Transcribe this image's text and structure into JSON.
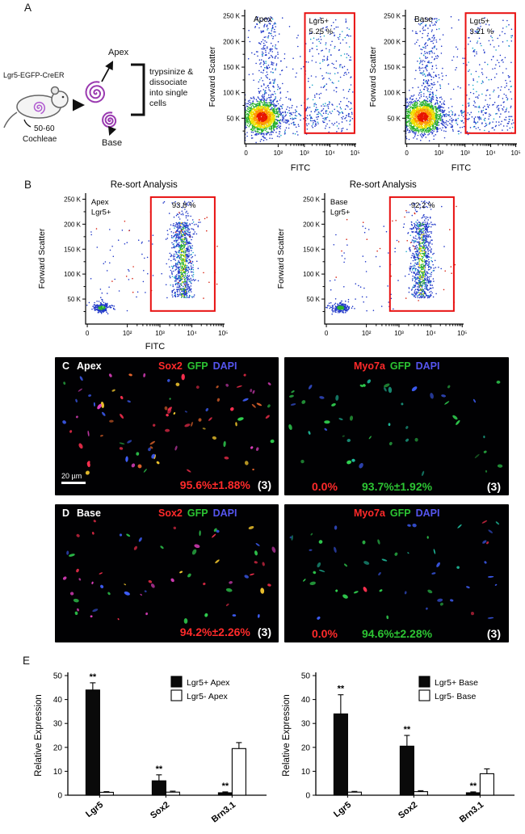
{
  "colors": {
    "gate": "#e81010",
    "density_core": "#e81400",
    "density_mid": "#f0e000",
    "density_low": "#2038c8",
    "sox2_red": "#ff2a2a",
    "gfp_green": "#2cc433",
    "dapi_blue": "#5555ee"
  },
  "flow_axes": {
    "ylabel": "Forward Scatter",
    "xlabel": "FITC",
    "yticks": [
      "250 K",
      "200 K",
      "150 K",
      "100 K",
      "50 K"
    ],
    "xticks": [
      "0",
      "10²",
      "10³",
      "10⁴",
      "10⁵"
    ]
  },
  "panelA": {
    "label": "A",
    "construct": "Lgr5-EGFP-CreER",
    "apex": "Apex",
    "base": "Base",
    "count_note": "50-60",
    "count_note2": "Cochleae",
    "process": [
      "trypsinize &",
      "dissociate",
      "into single",
      "cells"
    ],
    "plots": [
      {
        "inside_label": "Apex",
        "gate_line1": "Lgr5+",
        "gate_line2": "5.25 %"
      },
      {
        "inside_label": "Base",
        "gate_line1": "Lgr5+",
        "gate_line2": "3.21 %"
      }
    ]
  },
  "panelB": {
    "label": "B",
    "plots": [
      {
        "title": "Re-sort Analysis",
        "sample1": "Apex",
        "sample2": "Lgr5+",
        "gate_value": "93.8 %"
      },
      {
        "title": "Re-sort Analysis",
        "sample1": "Base",
        "sample2": "Lgr5+",
        "gate_value": "92.2 %"
      }
    ]
  },
  "panelC": {
    "label": "C",
    "region": "Apex",
    "scalebar": "20 µm",
    "left": {
      "stain1": "Sox2",
      "stain2": "GFP",
      "stain3": "DAPI",
      "stat1": "95.6%±1.88%",
      "stat_n": "(3)"
    },
    "right": {
      "stain1": "Myo7a",
      "stain2": "GFP",
      "stain3": "DAPI",
      "stat0": "0.0%",
      "stat1": "93.7%±1.92%",
      "stat_n": "(3)"
    }
  },
  "panelD": {
    "label": "D",
    "region": "Base",
    "left": {
      "stain1": "Sox2",
      "stain2": "GFP",
      "stain3": "DAPI",
      "stat1": "94.2%±2.26%",
      "stat_n": "(3)"
    },
    "right": {
      "stain1": "Myo7a",
      "stain2": "GFP",
      "stain3": "DAPI",
      "stat0": "0.0%",
      "stat1": "94.6%±2.28%",
      "stat_n": "(3)"
    }
  },
  "panelE": {
    "label": "E"
  },
  "chart_data": [
    {
      "type": "bar",
      "ylabel": "Relative Expression",
      "ylim": [
        0,
        50
      ],
      "yticks": [
        0,
        10,
        20,
        30,
        40,
        50
      ],
      "categories": [
        "Lgr5",
        "Sox2",
        "Brn3.1"
      ],
      "legend_position": "top-right",
      "series": [
        {
          "name": "Lgr5+ Apex",
          "fill": "#0a0a0a",
          "values": [
            44,
            6,
            1
          ],
          "errors": [
            3,
            2.5,
            0.4
          ],
          "sig": [
            "**",
            "**",
            "**"
          ]
        },
        {
          "name": "Lgr5- Apex",
          "fill": "#ffffff",
          "values": [
            1.2,
            1.3,
            19.5
          ],
          "errors": [
            0.3,
            0.4,
            2.5
          ],
          "sig": [
            "",
            "",
            ""
          ]
        }
      ]
    },
    {
      "type": "bar",
      "ylabel": "Relative Expression",
      "ylim": [
        0,
        50
      ],
      "yticks": [
        0,
        10,
        20,
        30,
        40,
        50
      ],
      "categories": [
        "Lgr5",
        "Sox2",
        "Brn3.1"
      ],
      "legend_position": "top-right",
      "series": [
        {
          "name": "Lgr5+ Base",
          "fill": "#0a0a0a",
          "values": [
            34,
            20.5,
            1
          ],
          "errors": [
            8,
            4.5,
            0.4
          ],
          "sig": [
            "**",
            "**",
            "**"
          ]
        },
        {
          "name": "Lgr5- Base",
          "fill": "#ffffff",
          "values": [
            1.3,
            1.5,
            9
          ],
          "errors": [
            0.3,
            0.4,
            2
          ],
          "sig": [
            "",
            "",
            ""
          ]
        }
      ]
    }
  ]
}
